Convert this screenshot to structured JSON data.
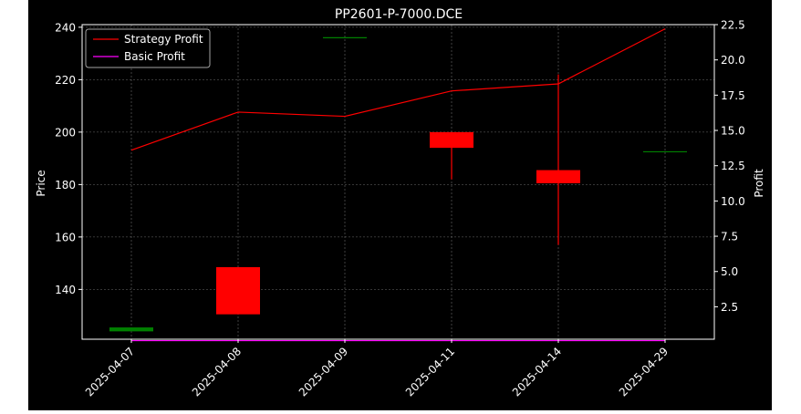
{
  "chart_data": {
    "type": "candlestick+line",
    "title": "PP2601-P-7000.DCE",
    "xlabel": "",
    "ylabel_left": "Price",
    "ylabel_right": "Profit",
    "categories": [
      "2025-04-07",
      "2025-04-08",
      "2025-04-09",
      "2025-04-11",
      "2025-04-14",
      "2025-04-29"
    ],
    "y_left": {
      "min": 121,
      "max": 241,
      "ticks": [
        140,
        160,
        180,
        200,
        220,
        240
      ]
    },
    "y_right": {
      "min": 0.2,
      "max": 22.5,
      "ticks": [
        2.5,
        5.0,
        7.5,
        10.0,
        12.5,
        15.0,
        17.5,
        20.0,
        22.5
      ],
      "tick_labels": [
        "2.5",
        "5.0",
        "7.5",
        "10.0",
        "12.5",
        "15.0",
        "17.5",
        "20.0",
        "22.5"
      ]
    },
    "candles": [
      {
        "date": "2025-04-07",
        "open": 124,
        "high": 125.5,
        "low": 124,
        "close": 125.5
      },
      {
        "date": "2025-04-08",
        "open": 148.5,
        "high": 148.5,
        "low": 130.5,
        "close": 130.5
      },
      {
        "date": "2025-04-09",
        "open": 236,
        "high": 236,
        "low": 236,
        "close": 236
      },
      {
        "date": "2025-04-11",
        "open": 200,
        "high": 200,
        "low": 182,
        "close": 194
      },
      {
        "date": "2025-04-14",
        "open": 185.5,
        "high": 222,
        "low": 157,
        "close": 180.5
      },
      {
        "date": "2025-04-29",
        "open": 192.5,
        "high": 192.5,
        "low": 192.5,
        "close": 192.5
      }
    ],
    "series": [
      {
        "name": "Strategy Profit",
        "color": "#ff0000",
        "axis": "right",
        "values": [
          13.6,
          16.3,
          16.0,
          17.8,
          18.3,
          22.2
        ]
      },
      {
        "name": "Basic Profit",
        "color": "#ff00ff",
        "axis": "right",
        "values": [
          0.1,
          0.1,
          0.1,
          0.1,
          0.1,
          0.1
        ]
      }
    ],
    "legend_position": "top-left",
    "grid": true,
    "colors": {
      "background": "#000000",
      "up": "#008000",
      "down": "#ff0000",
      "grid": "#888888",
      "text": "#ffffff"
    }
  }
}
